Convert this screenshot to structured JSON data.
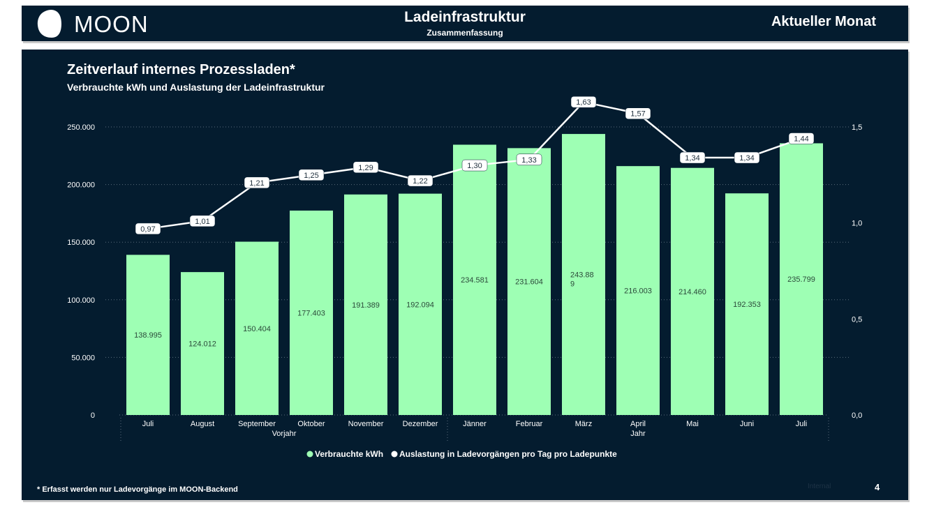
{
  "header": {
    "logo_text": "MOON",
    "title": "Ladeinfrastruktur",
    "subtitle": "Zusammenfassung",
    "right_label": "Aktueller Monat"
  },
  "chart_data": {
    "type": "bar",
    "title": "Zeitverlauf internes Prozessladen*",
    "subtitle": "Verbrauchte kWh und Auslastung der Ladeinfrastruktur",
    "categories": [
      "Juli",
      "August",
      "September",
      "Oktober",
      "November",
      "Dezember",
      "Jänner",
      "Februar",
      "März",
      "April",
      "Mai",
      "Juni",
      "Juli"
    ],
    "group_labels": [
      {
        "label": "Vorjahr",
        "from": 0,
        "to": 5
      },
      {
        "label": "Jahr",
        "from": 6,
        "to": 12
      }
    ],
    "series": [
      {
        "name": "Verbrauchte kWh",
        "type": "bar",
        "axis": "left",
        "color": "#9effb4",
        "values": [
          138995,
          124012,
          150404,
          177403,
          191389,
          192094,
          234581,
          231604,
          243889,
          216003,
          214460,
          192353,
          235799
        ],
        "labels": [
          "138.995",
          "124.012",
          "150.404",
          "177.403",
          "191.389",
          "192.094",
          "234.581",
          "231.604",
          "243.88\n9",
          "216.003",
          "214.460",
          "192.353",
          "235.799"
        ]
      },
      {
        "name": "Auslastung in Ladevorgängen pro Tag pro Ladepunkte",
        "type": "line",
        "axis": "right",
        "color": "#ffffff",
        "values": [
          0.97,
          1.01,
          1.21,
          1.25,
          1.29,
          1.22,
          1.3,
          1.33,
          1.63,
          1.57,
          1.34,
          1.34,
          1.44
        ],
        "labels": [
          "0,97",
          "1,01",
          "1,21",
          "1,25",
          "1,29",
          "1,22",
          "1,30",
          "1,33",
          "1,63",
          "1,57",
          "1,34",
          "1,34",
          "1,44"
        ]
      }
    ],
    "y_left": {
      "ylim": [
        0,
        250000
      ],
      "ticks": [
        0,
        50000,
        100000,
        150000,
        200000,
        250000
      ],
      "tick_labels": [
        "0",
        "50.000",
        "100.000",
        "150.000",
        "200.000",
        "250.000"
      ]
    },
    "y_right": {
      "ylim": [
        0,
        1.5
      ],
      "ticks": [
        0,
        0.5,
        1.0,
        1.5
      ],
      "tick_labels": [
        "0,0",
        "0,5",
        "1,0",
        "1,5"
      ]
    },
    "grid": "horizontal dotted",
    "legend": "bottom-center"
  },
  "footer": {
    "footnote": "* Erfasst werden nur Ladevorgänge im MOON-Backend",
    "classification": "Internal",
    "page_number": "4"
  },
  "colors": {
    "background": "#041c2f",
    "bar": "#9effb4",
    "line": "#ffffff",
    "text": "#ffffff"
  }
}
